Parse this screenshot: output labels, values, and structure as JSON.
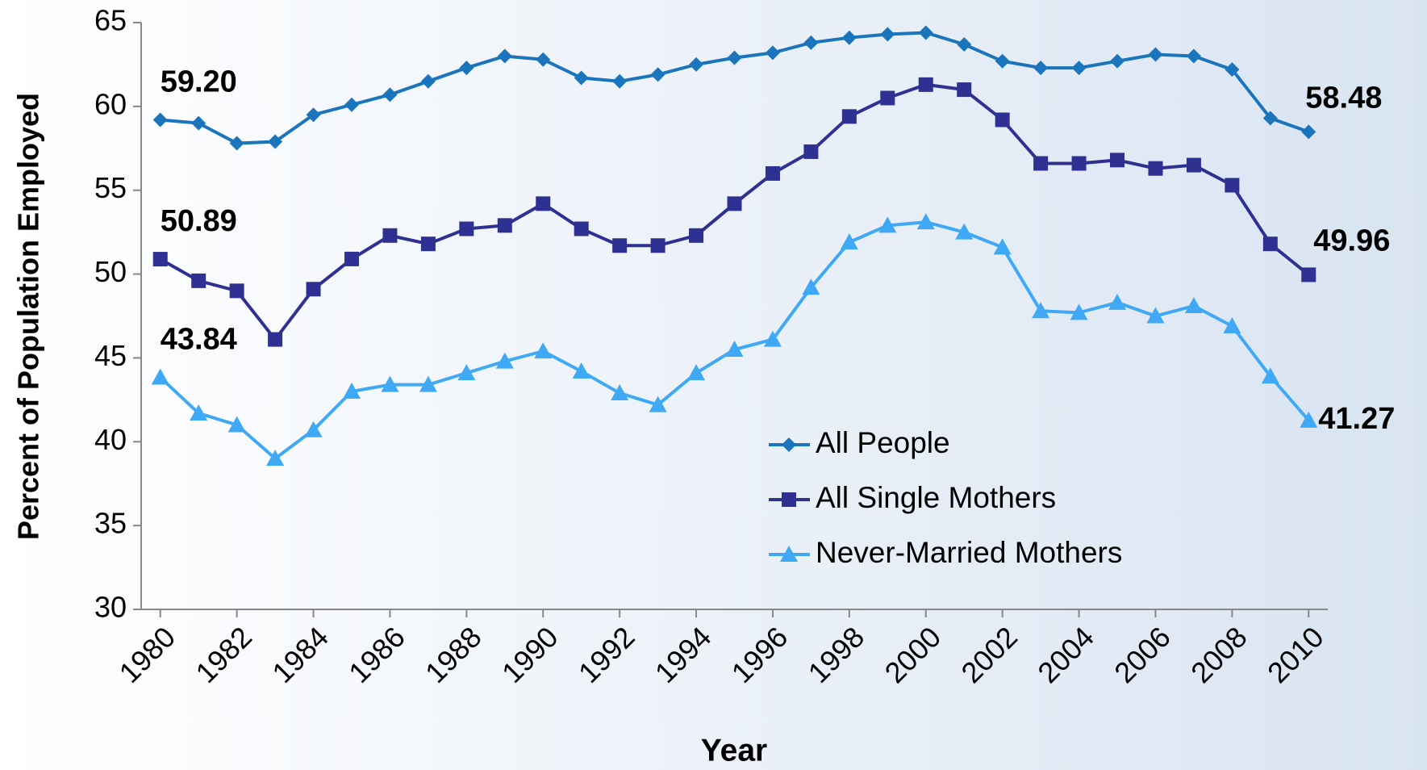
{
  "chart_data": {
    "type": "line",
    "xlabel": "Year",
    "ylabel": "Percent of Population Employed",
    "x": [
      1980,
      1981,
      1982,
      1983,
      1984,
      1985,
      1986,
      1987,
      1988,
      1989,
      1990,
      1991,
      1992,
      1993,
      1994,
      1995,
      1996,
      1997,
      1998,
      1999,
      2000,
      2001,
      2002,
      2003,
      2004,
      2005,
      2006,
      2007,
      2008,
      2009,
      2010
    ],
    "xlim": [
      1979.5,
      2010.5
    ],
    "xticks": [
      1980,
      1982,
      1984,
      1986,
      1988,
      1990,
      1992,
      1994,
      1996,
      1998,
      2000,
      2002,
      2004,
      2006,
      2008,
      2010
    ],
    "ylim": [
      30,
      65
    ],
    "yticks": [
      30,
      35,
      40,
      45,
      50,
      55,
      60,
      65
    ],
    "legend": "lower center",
    "series": [
      {
        "name": "All People",
        "color": "#1a75bc",
        "marker": "diamond",
        "values": [
          59.2,
          59.0,
          57.8,
          57.9,
          59.5,
          60.1,
          60.7,
          61.5,
          62.3,
          63.0,
          62.8,
          61.7,
          61.5,
          61.9,
          62.5,
          62.9,
          63.2,
          63.8,
          64.1,
          64.3,
          64.4,
          63.7,
          62.7,
          62.3,
          62.3,
          62.7,
          63.1,
          63.0,
          62.2,
          59.3,
          58.48
        ],
        "value_labels": [
          "59.20",
          null,
          null,
          null,
          null,
          null,
          null,
          null,
          null,
          null,
          null,
          null,
          null,
          null,
          null,
          null,
          null,
          null,
          null,
          null,
          null,
          null,
          null,
          null,
          null,
          null,
          null,
          null,
          null,
          null,
          "58.48"
        ]
      },
      {
        "name": "All Single Mothers",
        "color": "#2e3192",
        "marker": "square",
        "values": [
          50.89,
          49.6,
          49.0,
          46.1,
          49.1,
          50.9,
          52.3,
          51.8,
          52.7,
          52.9,
          54.2,
          52.7,
          51.7,
          51.7,
          52.3,
          54.2,
          56.0,
          57.3,
          59.4,
          60.5,
          61.3,
          61.0,
          59.2,
          56.6,
          56.6,
          56.8,
          56.3,
          56.5,
          55.3,
          51.8,
          49.96
        ],
        "value_labels": [
          "50.89",
          null,
          null,
          null,
          null,
          null,
          null,
          null,
          null,
          null,
          null,
          null,
          null,
          null,
          null,
          null,
          null,
          null,
          null,
          null,
          null,
          null,
          null,
          null,
          null,
          null,
          null,
          null,
          null,
          null,
          "49.96"
        ]
      },
      {
        "name": "Never-Married Mothers",
        "color": "#3fa9f5",
        "marker": "triangle",
        "values": [
          43.84,
          41.7,
          41.0,
          39.0,
          40.7,
          43.0,
          43.4,
          43.4,
          44.1,
          44.8,
          45.4,
          44.2,
          42.9,
          42.2,
          44.1,
          45.5,
          46.1,
          49.2,
          51.9,
          52.9,
          53.1,
          52.5,
          51.6,
          47.8,
          47.7,
          48.3,
          47.5,
          48.1,
          46.9,
          43.9,
          41.27
        ],
        "value_labels": [
          "43.84",
          null,
          null,
          null,
          null,
          null,
          null,
          null,
          null,
          null,
          null,
          null,
          null,
          null,
          null,
          null,
          null,
          null,
          null,
          null,
          null,
          null,
          null,
          null,
          null,
          null,
          null,
          null,
          null,
          null,
          "41.27"
        ]
      }
    ]
  }
}
